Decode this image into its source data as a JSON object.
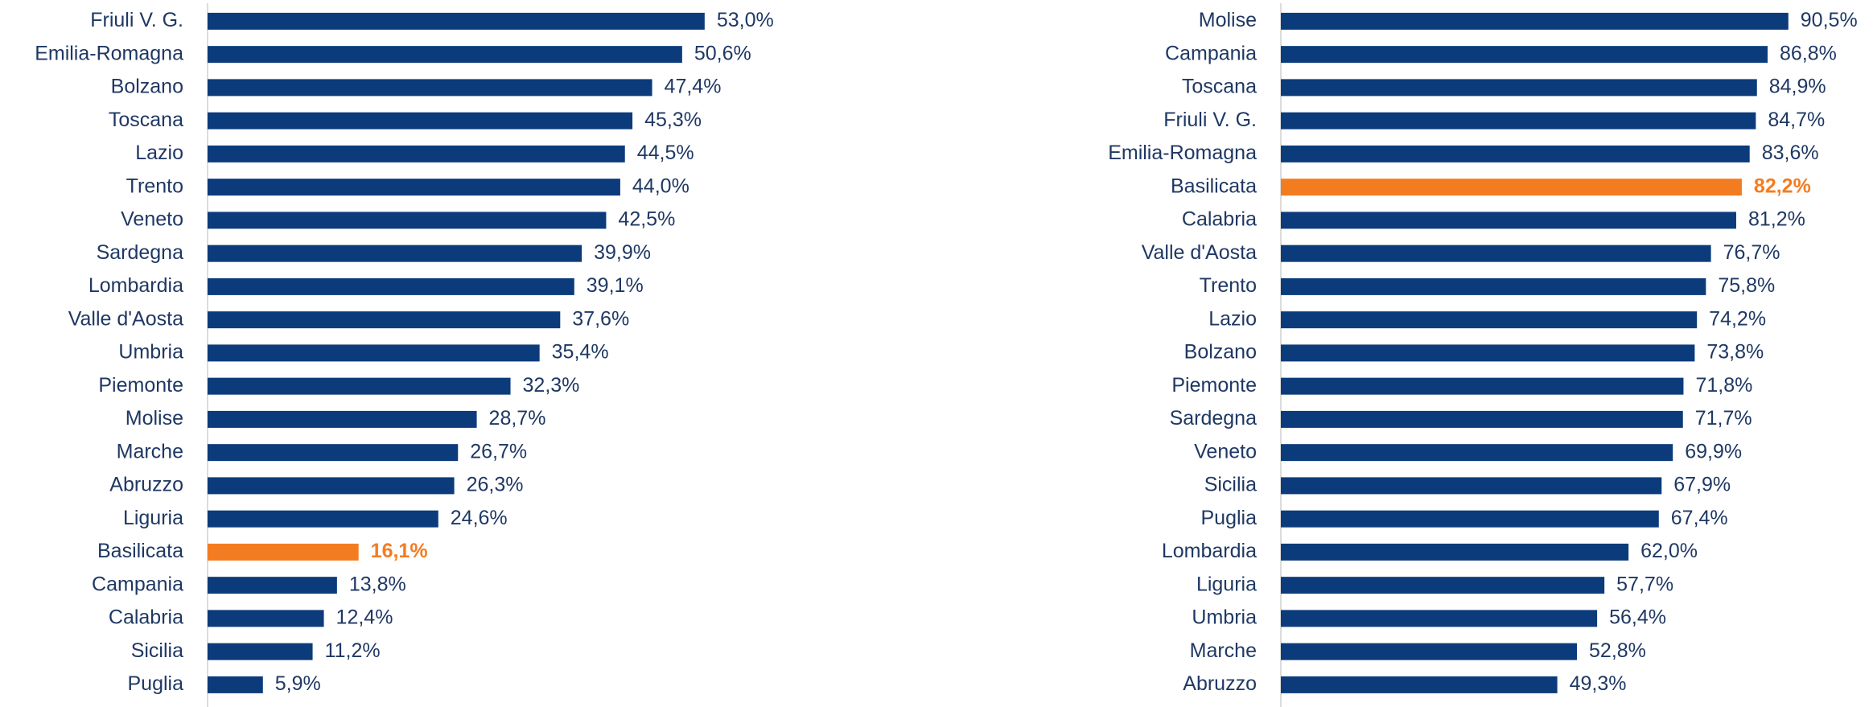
{
  "chart_data": [
    {
      "type": "barh",
      "categories": [
        "Friuli V. G.",
        "Emilia-Romagna",
        "Bolzano",
        "Toscana",
        "Lazio",
        "Trento",
        "Veneto",
        "Sardegna",
        "Lombardia",
        "Valle d'Aosta",
        "Umbria",
        "Piemonte",
        "Molise",
        "Marche",
        "Abruzzo",
        "Liguria",
        "Basilicata",
        "Campania",
        "Calabria",
        "Sicilia",
        "Puglia"
      ],
      "values": [
        53.0,
        50.6,
        47.4,
        45.3,
        44.5,
        44.0,
        42.5,
        39.9,
        39.1,
        37.6,
        35.4,
        32.3,
        28.7,
        26.7,
        26.3,
        24.6,
        16.1,
        13.8,
        12.4,
        11.2,
        5.9
      ],
      "value_labels": [
        "53,0%",
        "50,6%",
        "47,4%",
        "45,3%",
        "44,5%",
        "44,0%",
        "42,5%",
        "39,9%",
        "39,1%",
        "37,6%",
        "35,4%",
        "32,3%",
        "28,7%",
        "26,7%",
        "26,3%",
        "24,6%",
        "16,1%",
        "13,8%",
        "12,4%",
        "11,2%",
        "5,9%"
      ],
      "color": "#0c3b7c",
      "highlight": {
        "category": "Basilicata",
        "color": "#f47c20"
      },
      "xlim": [
        0,
        70
      ]
    },
    {
      "type": "barh",
      "categories": [
        "Molise",
        "Campania",
        "Toscana",
        "Friuli V. G.",
        "Emilia-Romagna",
        "Basilicata",
        "Calabria",
        "Valle d'Aosta",
        "Trento",
        "Lazio",
        "Bolzano",
        "Piemonte",
        "Sardegna",
        "Veneto",
        "Sicilia",
        "Puglia",
        "Lombardia",
        "Liguria",
        "Umbria",
        "Marche",
        "Abruzzo"
      ],
      "values": [
        90.5,
        86.8,
        84.9,
        84.7,
        83.6,
        82.2,
        81.2,
        76.7,
        75.8,
        74.2,
        73.8,
        71.8,
        71.7,
        69.9,
        67.9,
        67.4,
        62.0,
        57.7,
        56.4,
        52.8,
        49.3
      ],
      "value_labels": [
        "90,5%",
        "86,8%",
        "84,9%",
        "84,7%",
        "83,6%",
        "82,2%",
        "81,2%",
        "76,7%",
        "75,8%",
        "74,2%",
        "73,8%",
        "71,8%",
        "71,7%",
        "69,9%",
        "67,9%",
        "67,4%",
        "62,0%",
        "57,7%",
        "56,4%",
        "52,8%",
        "49,3%"
      ],
      "color": "#0c3b7c",
      "highlight": {
        "category": "Basilicata",
        "color": "#f47c20"
      },
      "xlim": [
        0,
        100
      ]
    }
  ]
}
